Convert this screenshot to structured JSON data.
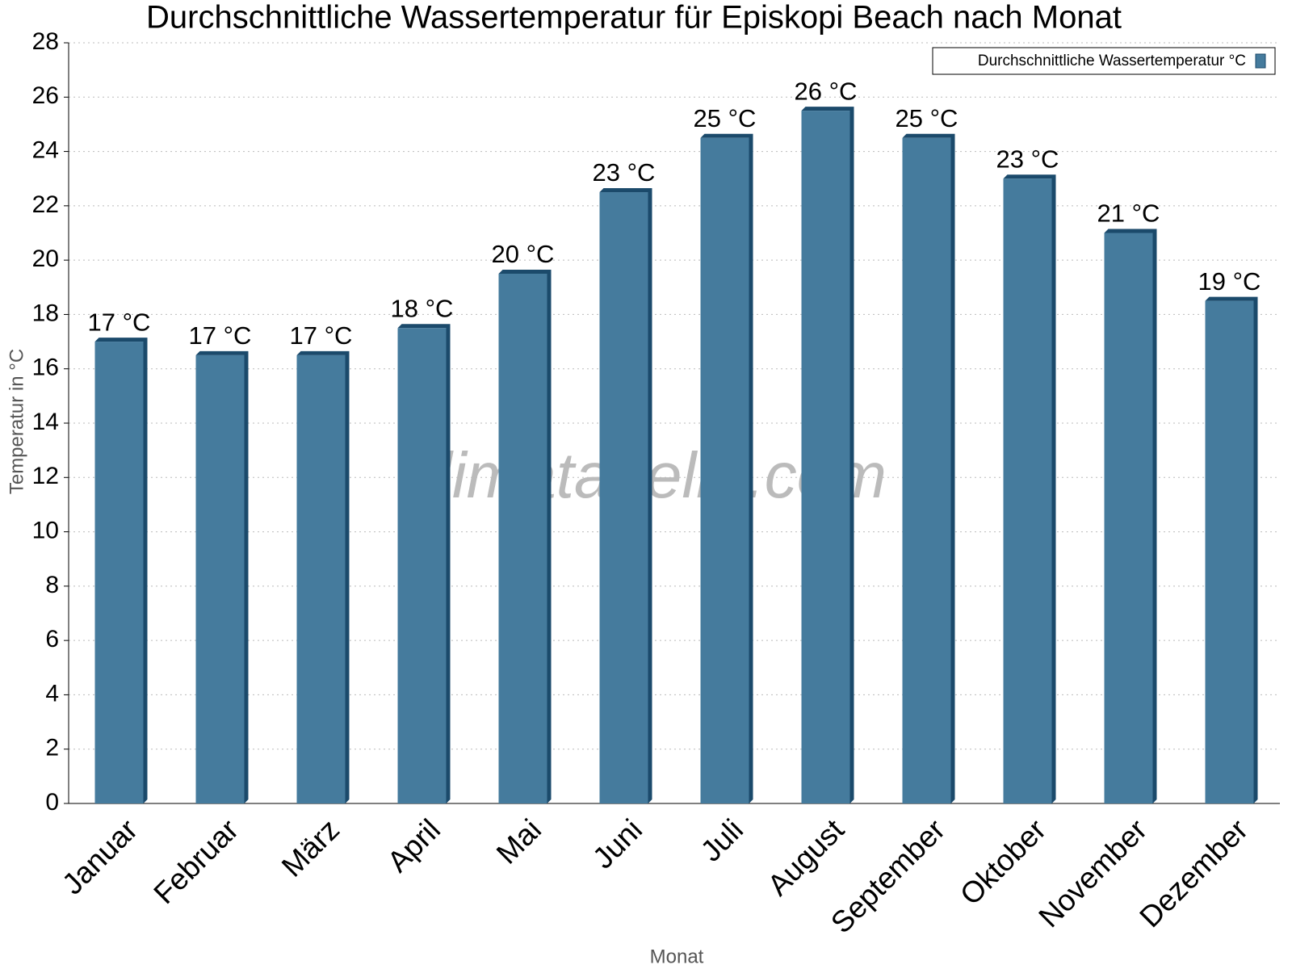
{
  "chart_data": {
    "type": "bar",
    "title": "Durchschnittliche Wassertemperatur für Episkopi Beach nach Monat",
    "watermark": "klimatabelle.com",
    "x_label": "Monat",
    "y_label": "Temperatur in °C",
    "categories": [
      "Januar",
      "Februar",
      "März",
      "April",
      "Mai",
      "Juni",
      "Juli",
      "August",
      "September",
      "Oktober",
      "November",
      "Dezember"
    ],
    "series": [
      {
        "name": "Durchschnittliche Wassertemperatur °C",
        "color": "#457b9d",
        "values": [
          17,
          16.5,
          16.5,
          17.5,
          19.5,
          22.5,
          24.5,
          25.5,
          24.5,
          23,
          21,
          18.5
        ],
        "value_labels": [
          "17 °C",
          "17 °C",
          "17 °C",
          "18 °C",
          "20 °C",
          "23 °C",
          "25 °C",
          "26 °C",
          "25 °C",
          "23 °C",
          "21 °C",
          "19 °C"
        ]
      }
    ],
    "ylim": [
      0,
      28
    ],
    "yticks": [
      0,
      2,
      4,
      6,
      8,
      10,
      12,
      14,
      16,
      18,
      20,
      22,
      24,
      26,
      28
    ],
    "grid": true,
    "legend": "top-right"
  }
}
